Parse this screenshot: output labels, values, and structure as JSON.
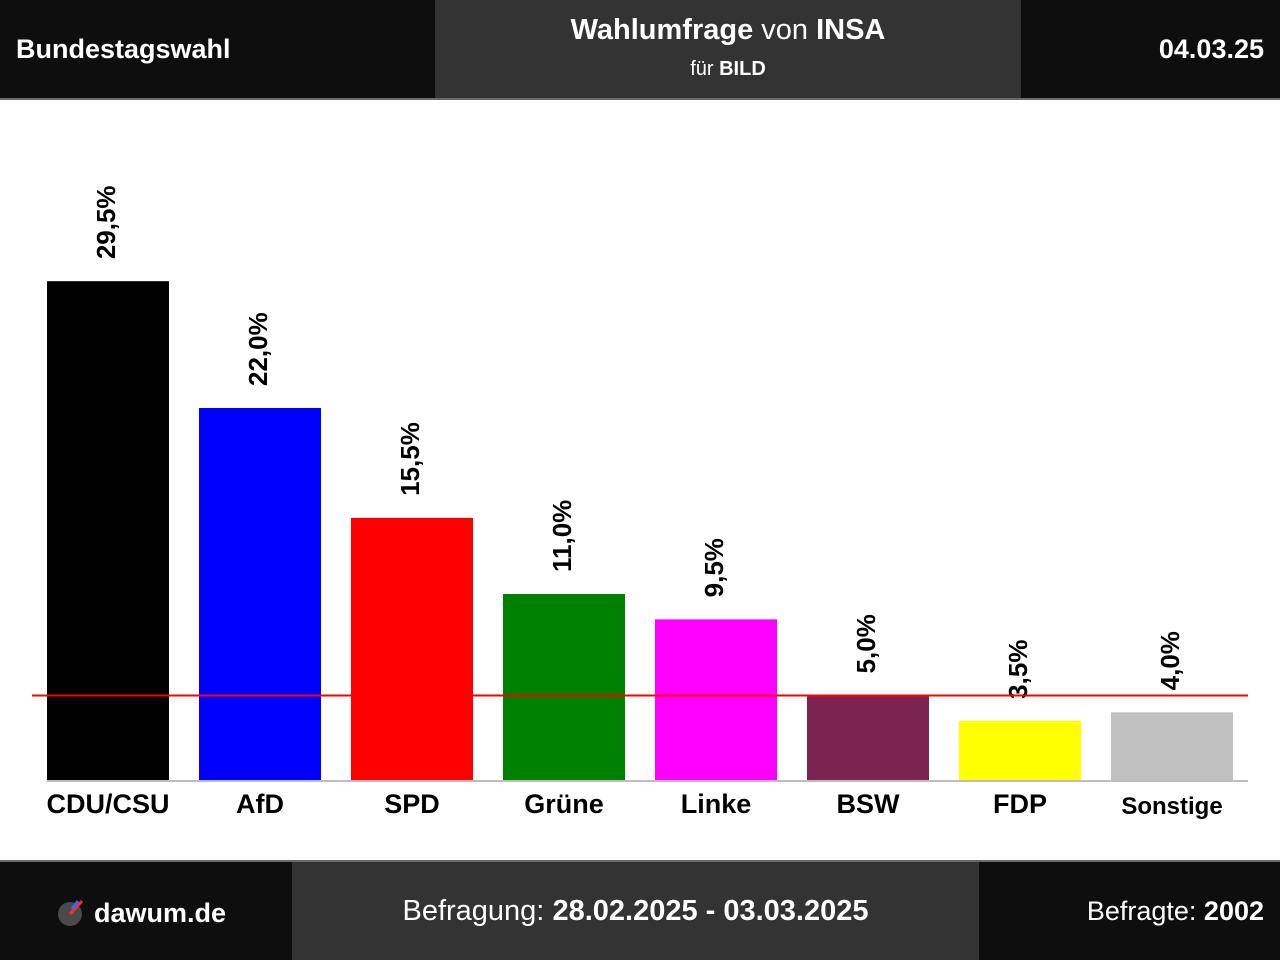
{
  "header": {
    "left": "Bundestagswahl",
    "title_bold": "Wahlumfrage",
    "title_mid": "von",
    "title_institute": "INSA",
    "subtitle_prefix": "für",
    "subtitle_client": "BILD",
    "date": "04.03.25"
  },
  "footer": {
    "brand": "dawum.de",
    "period_label": "Befragung:",
    "period_value": "28.02.2025 - 03.03.2025",
    "respondents_label": "Befragte:",
    "respondents_value": "2002"
  },
  "chart_data": {
    "type": "bar",
    "categories": [
      "CDU/CSU",
      "AfD",
      "SPD",
      "Grüne",
      "Linke",
      "BSW",
      "FDP",
      "Sonstige"
    ],
    "values": [
      29.5,
      22.0,
      15.5,
      11.0,
      9.5,
      5.0,
      3.5,
      4.0
    ],
    "value_labels": [
      "29,5%",
      "22,0%",
      "15,5%",
      "11,0%",
      "9,5%",
      "5,0%",
      "3,5%",
      "4,0%"
    ],
    "colors": [
      "#000000",
      "#0000ff",
      "#ff0000",
      "#008000",
      "#ff00ff",
      "#7b2450",
      "#ffff00",
      "#c0c0c0"
    ],
    "threshold": 5.0,
    "threshold_color": "#ff0000",
    "ylim": [
      0,
      34.3
    ],
    "grid": false
  }
}
